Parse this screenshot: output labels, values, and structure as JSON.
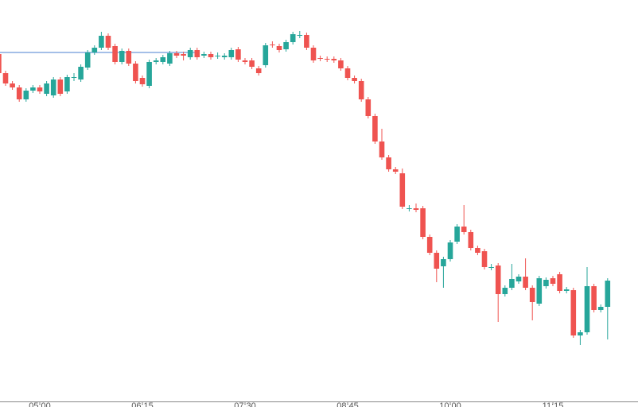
{
  "chart_data": {
    "type": "candlestick",
    "categories": [
      null,
      null,
      null,
      null,
      null,
      null,
      "05:00",
      null,
      null,
      null,
      null,
      null,
      null,
      null,
      null,
      null,
      null,
      null,
      null,
      null,
      null,
      "06:15",
      null,
      null,
      null,
      null,
      null,
      null,
      null,
      null,
      null,
      null,
      null,
      null,
      null,
      null,
      "07:30",
      null,
      null,
      null,
      null,
      null,
      null,
      null,
      null,
      null,
      null,
      null,
      null,
      null,
      null,
      "08:45",
      null,
      null,
      null,
      null,
      null,
      null,
      null,
      null,
      null,
      null,
      null,
      null,
      null,
      null,
      "10:00",
      null,
      null,
      null,
      null,
      null,
      null,
      null,
      null,
      null,
      null,
      null,
      null,
      null,
      null,
      "11:15",
      null,
      null,
      null,
      null,
      null,
      null,
      null,
      null
    ],
    "open": [
      432,
      408,
      395,
      390,
      375,
      386,
      390,
      382,
      380,
      400,
      385,
      403,
      400,
      415,
      434,
      440,
      455,
      442,
      422,
      436,
      420,
      402,
      392,
      422,
      422,
      420,
      433,
      432,
      428,
      437,
      430,
      432,
      430,
      428,
      428,
      438,
      424,
      424,
      414,
      418,
      444,
      442,
      438,
      447,
      456,
      456,
      440,
      427,
      426,
      426,
      424,
      414,
      402,
      398,
      375,
      354,
      322,
      302,
      287,
      282,
      238,
      238,
      238,
      202,
      182,
      165,
      174,
      196,
      215,
      208,
      188,
      184,
      164,
      166,
      130,
      138,
      146,
      152,
      138,
      118,
      140,
      150,
      155,
      134,
      135,
      78,
      82,
      140,
      110,
      114
    ],
    "high": [
      435,
      411,
      398,
      393,
      389,
      393,
      393,
      398,
      403,
      403,
      406,
      408,
      419,
      437,
      443,
      460,
      458,
      445,
      439,
      439,
      423,
      405,
      425,
      427,
      431,
      436,
      436,
      435,
      440,
      440,
      435,
      435,
      434,
      433,
      440,
      441,
      427,
      427,
      417,
      446,
      448,
      445,
      450,
      460,
      461,
      459,
      443,
      430,
      429,
      429,
      427,
      417,
      405,
      401,
      378,
      357,
      338,
      305,
      290,
      288,
      242,
      244,
      241,
      205,
      185,
      177,
      198,
      218,
      242,
      211,
      191,
      187,
      168,
      169,
      141,
      168,
      155,
      175,
      141,
      153,
      151,
      153,
      158,
      139,
      138,
      85,
      164,
      143,
      117,
      150
    ],
    "low": [
      405,
      392,
      387,
      372,
      372,
      383,
      382,
      379,
      377,
      379,
      382,
      398,
      397,
      412,
      431,
      437,
      437,
      419,
      419,
      417,
      395,
      391,
      389,
      419,
      419,
      417,
      427,
      424,
      425,
      425,
      427,
      425,
      426,
      425,
      425,
      422,
      419,
      413,
      405,
      415,
      440,
      434,
      435,
      444,
      452,
      437,
      421,
      423,
      422,
      421,
      411,
      399,
      395,
      372,
      351,
      319,
      299,
      284,
      281,
      237,
      234,
      233,
      199,
      179,
      145,
      138,
      171,
      193,
      205,
      185,
      179,
      161,
      160,
      95,
      127,
      135,
      143,
      135,
      97,
      115,
      137,
      140,
      131,
      131,
      75,
      66,
      79,
      107,
      107,
      73
    ],
    "close": [
      408,
      395,
      390,
      375,
      386,
      390,
      385,
      395,
      400,
      382,
      403,
      403,
      416,
      434,
      440,
      455,
      440,
      422,
      436,
      420,
      398,
      394,
      422,
      424,
      428,
      433,
      430,
      430,
      437,
      428,
      432,
      428,
      430,
      430,
      437,
      425,
      422,
      416,
      408,
      443,
      443,
      437,
      447,
      457,
      456,
      440,
      424,
      426,
      425,
      424,
      414,
      402,
      398,
      375,
      354,
      322,
      302,
      287,
      284,
      240,
      238,
      236,
      202,
      182,
      162,
      174,
      195,
      215,
      208,
      188,
      182,
      164,
      164,
      130,
      138,
      149,
      152,
      138,
      120,
      150,
      148,
      143,
      134,
      136,
      78,
      82,
      140,
      110,
      114,
      147
    ],
    "up_color": "#26a69a",
    "down_color": "#ef5350",
    "ylim": [
      -5,
      500
    ]
  }
}
